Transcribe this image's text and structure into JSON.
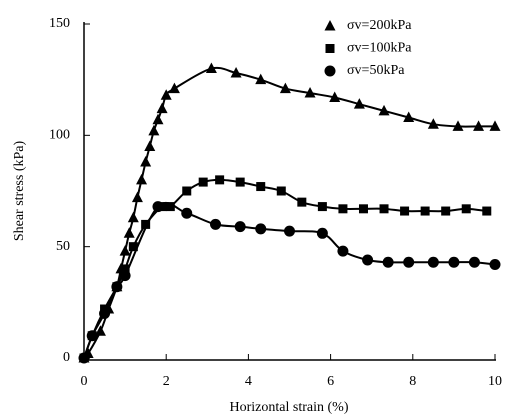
{
  "chart_data": {
    "type": "scatter",
    "x_label": "Horizontal strain (%)",
    "y_label": "Shear stress (kPa)",
    "xlim": [
      0,
      10
    ],
    "xticks": [
      0,
      2,
      4,
      6,
      8,
      10
    ],
    "ylim": [
      0,
      150
    ],
    "yticks": [
      0,
      50,
      100,
      150
    ],
    "legend": "upper-right",
    "fit_lines": true,
    "series": [
      {
        "name": "σv=200kPa",
        "marker": "triangle",
        "color": "#000000",
        "x": [
          0,
          0.1,
          0.4,
          0.6,
          0.8,
          0.9,
          1.0,
          1.1,
          1.2,
          1.3,
          1.4,
          1.5,
          1.6,
          1.7,
          1.8,
          1.9,
          2.0,
          2.2,
          3.1,
          3.7,
          4.3,
          4.9,
          5.5,
          6.1,
          6.7,
          7.3,
          7.9,
          8.5,
          9.1,
          9.6,
          10.0
        ],
        "values": [
          0,
          2,
          12,
          22,
          32,
          40,
          48,
          56,
          63,
          72,
          80,
          88,
          95,
          102,
          107,
          112,
          118,
          121,
          130,
          128,
          125,
          121,
          119,
          117,
          114,
          111,
          108,
          105,
          104,
          104,
          104
        ]
      },
      {
        "name": "σv=100kPa",
        "marker": "square",
        "color": "#000000",
        "x": [
          0,
          0.2,
          0.5,
          0.8,
          1.0,
          1.2,
          1.5,
          1.9,
          2.1,
          2.5,
          2.9,
          3.3,
          3.8,
          4.3,
          4.8,
          5.3,
          5.8,
          6.3,
          6.8,
          7.3,
          7.8,
          8.3,
          8.8,
          9.3,
          9.8
        ],
        "values": [
          0,
          10,
          22,
          32,
          40,
          50,
          60,
          68,
          68,
          75,
          79,
          80,
          79,
          77,
          75,
          70,
          68,
          67,
          67,
          67,
          66,
          66,
          66,
          67,
          66
        ]
      },
      {
        "name": "σv=50kPa",
        "marker": "circle",
        "color": "#000000",
        "x": [
          0,
          0.2,
          0.5,
          0.8,
          1.0,
          1.8,
          2.5,
          3.2,
          3.8,
          4.3,
          5.0,
          5.8,
          6.3,
          6.9,
          7.4,
          7.9,
          8.5,
          9.0,
          9.5,
          10.0
        ],
        "values": [
          0,
          10,
          20,
          32,
          37,
          68,
          65,
          60,
          59,
          58,
          57,
          56,
          48,
          44,
          43,
          43,
          43,
          43,
          43,
          42
        ]
      }
    ]
  }
}
